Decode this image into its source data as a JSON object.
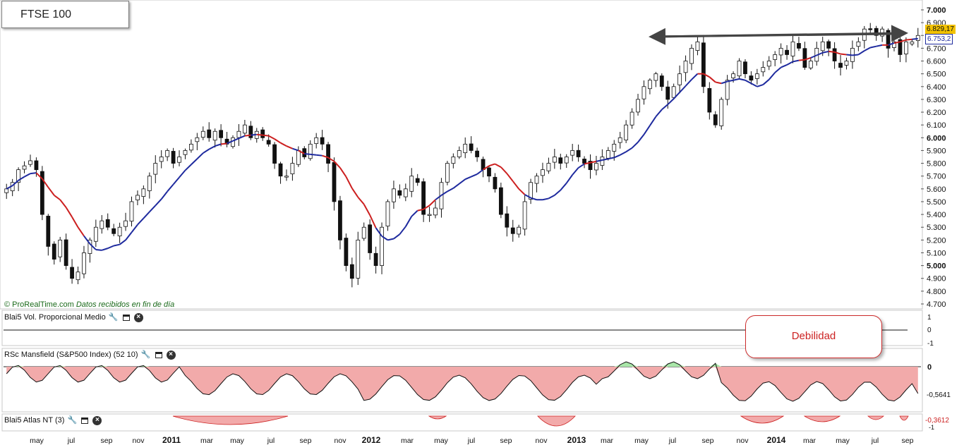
{
  "chart": {
    "title": "FTSE 100"
  },
  "copyright": {
    "source": "© ProRealTime.com",
    "note": "Datos recibidos en fin de día"
  },
  "price_labels": {
    "last": "6.829,17",
    "ma": "6.753,2"
  },
  "panels": [
    {
      "label": "Blai5 Vol. Proporcional Medio",
      "axis": [
        "1",
        "0",
        "-1"
      ]
    },
    {
      "label": "RSc Mansfield (S&P500 Index) (52 10)",
      "axis": [
        "0",
        "-0,5641"
      ]
    },
    {
      "label": "Blai5 Atlas NT (3)",
      "axis": [
        "-0,3612",
        "-1"
      ]
    }
  ],
  "callout": {
    "text": "Debilidad"
  },
  "colors": {
    "ma_below": "#cc1f1f",
    "ma_above": "#1e2a9e",
    "negative_fill": "#f2aaaa",
    "positive_fill": "#a8e6a8",
    "price_badge_last": "#f2c200",
    "price_badge_ma": "#1e2a9e"
  },
  "icons": [
    "wrench-icon",
    "window-icon",
    "close-icon"
  ],
  "chart_data": {
    "type": "candlestick",
    "title": "FTSE 100",
    "ylim": [
      4700,
      7000
    ],
    "y_ticks": [
      "7.000",
      "6.900",
      "6.800",
      "6.700",
      "6.600",
      "6.500",
      "6.400",
      "6.300",
      "6.200",
      "6.100",
      "6.000",
      "5.900",
      "5.800",
      "5.700",
      "5.600",
      "5.500",
      "5.400",
      "5.300",
      "5.200",
      "5.100",
      "5.000",
      "4.900",
      "4.800",
      "4.700"
    ],
    "x_ticks": [
      "may",
      "jul",
      "sep",
      "nov",
      "2011",
      "mar",
      "may",
      "jul",
      "sep",
      "nov",
      "2012",
      "mar",
      "may",
      "jul",
      "sep",
      "nov",
      "2013",
      "mar",
      "may",
      "jul",
      "sep",
      "nov",
      "2014",
      "mar",
      "may",
      "jul",
      "sep"
    ],
    "grid": false,
    "close_approx": [
      5600,
      5650,
      5750,
      5780,
      5820,
      5750,
      5400,
      5150,
      5050,
      5200,
      5000,
      4900,
      4950,
      5100,
      5200,
      5300,
      5350,
      5300,
      5250,
      5300,
      5350,
      5500,
      5550,
      5600,
      5700,
      5800,
      5850,
      5900,
      5800,
      5850,
      5900,
      5950,
      6000,
      6050,
      6000,
      6050,
      6000,
      5950,
      6000,
      6050,
      6100,
      6000,
      6050,
      6000,
      5950,
      5800,
      5700,
      5700,
      5800,
      5900,
      5850,
      5950,
      6000,
      5950,
      5800,
      5500,
      5200,
      5000,
      4900,
      5200,
      5300,
      5100,
      5000,
      5300,
      5500,
      5600,
      5550,
      5600,
      5700,
      5650,
      5400,
      5400,
      5450,
      5650,
      5800,
      5850,
      5900,
      5950,
      5900,
      5850,
      5750,
      5700,
      5600,
      5400,
      5300,
      5250,
      5300,
      5500,
      5650,
      5700,
      5750,
      5800,
      5850,
      5800,
      5850,
      5900,
      5850,
      5800,
      5750,
      5800,
      5850,
      5900,
      5950,
      6000,
      6100,
      6200,
      6300,
      6400,
      6450,
      6500,
      6400,
      6300,
      6400,
      6500,
      6600,
      6700,
      6750,
      6400,
      6200,
      6100,
      6300,
      6450,
      6500,
      6600,
      6500,
      6450,
      6500,
      6550,
      6600,
      6650,
      6700,
      6650,
      6750,
      6700,
      6550,
      6600,
      6700,
      6750,
      6700,
      6600,
      6550,
      6600,
      6700,
      6750,
      6850,
      6850,
      6800,
      6850,
      6700,
      6750,
      6650,
      6750,
      6750,
      6800
    ]
  }
}
